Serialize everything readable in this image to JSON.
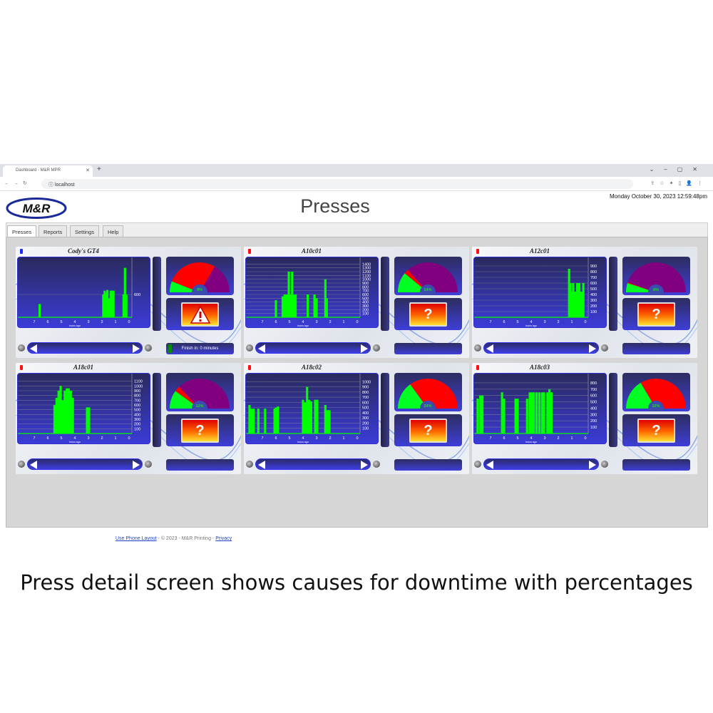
{
  "browser": {
    "tab_title": "Dashboard - M&R MPR",
    "url": "localhost"
  },
  "header": {
    "logo_text": "M&R",
    "title": "Presses",
    "datetime": "Monday October 30, 2023 12:59:48pm"
  },
  "tabs": [
    {
      "label": "Presses",
      "active": true
    },
    {
      "label": "Reports"
    },
    {
      "label": "Settings"
    },
    {
      "label": "Help"
    }
  ],
  "colors": {
    "bar": "#00ff00",
    "gauge_green": "#00ff22",
    "gauge_red": "#ff0000",
    "gauge_purple": "#800080",
    "status_running": "#1f2bff",
    "status_stopped": "#ff1010"
  },
  "chart_common": {
    "x_ticks": [
      7,
      6,
      5,
      4,
      3,
      2,
      1,
      0
    ],
    "x_label": "hours ago",
    "x_range": [
      8,
      0
    ]
  },
  "presses": [
    {
      "name": "Cody's GT4",
      "status": "status_running",
      "ymax": 1500,
      "yticks": [
        600
      ],
      "bars": [
        [
          6.6,
          350
        ],
        [
          1.9,
          600
        ],
        [
          1.8,
          700
        ],
        [
          1.7,
          650
        ],
        [
          1.6,
          720
        ],
        [
          1.5,
          500
        ],
        [
          1.35,
          700
        ],
        [
          1.25,
          700
        ],
        [
          1.15,
          700
        ],
        [
          0.4,
          600
        ],
        [
          0.3,
          1300
        ],
        [
          0.2,
          600
        ]
      ],
      "gauge": {
        "green": 0.12,
        "red": 0.55,
        "purple": 0.33,
        "percent": "9%"
      },
      "alert": "warning",
      "alert_icon": "warning-icon",
      "finish": "Finish in: 0 minutes"
    },
    {
      "name": "A10c01",
      "status": "status_stopped",
      "ymax": 1500,
      "yticks": [
        100,
        200,
        300,
        400,
        500,
        600,
        700,
        800,
        900,
        1000,
        1100,
        1200,
        1300,
        1400
      ],
      "bars": [
        [
          6.0,
          450
        ],
        [
          5.5,
          550
        ],
        [
          5.35,
          600
        ],
        [
          5.2,
          600
        ],
        [
          5.05,
          1200
        ],
        [
          4.95,
          600
        ],
        [
          4.8,
          1200
        ],
        [
          4.65,
          600
        ],
        [
          4.55,
          600
        ],
        [
          3.65,
          600
        ],
        [
          3.15,
          600
        ],
        [
          3.0,
          500
        ],
        [
          2.35,
          1000
        ],
        [
          2.25,
          500
        ]
      ],
      "gauge": {
        "green": 0.22,
        "red": 0.05,
        "purple": 0.73,
        "percent": "14%"
      },
      "alert": "?",
      "alert_icon": "question-icon",
      "finish": ""
    },
    {
      "name": "A12c01",
      "status": "status_stopped",
      "ymax": 1000,
      "yticks": [
        100,
        200,
        300,
        400,
        500,
        600,
        700,
        800,
        900
      ],
      "bars": [
        [
          1.2,
          850
        ],
        [
          1.1,
          600
        ],
        [
          1.0,
          450
        ],
        [
          0.9,
          600
        ],
        [
          0.75,
          450
        ],
        [
          0.6,
          600
        ],
        [
          0.45,
          600
        ],
        [
          0.3,
          450
        ],
        [
          0.15,
          600
        ]
      ],
      "gauge": {
        "green": 0.1,
        "red": 0.01,
        "purple": 0.89,
        "percent": "6%"
      },
      "alert": "?",
      "alert_icon": "question-icon",
      "finish": ""
    },
    {
      "name": "A18c01",
      "status": "status_stopped",
      "ymax": 1200,
      "yticks": [
        100,
        200,
        300,
        400,
        500,
        600,
        700,
        800,
        900,
        1000,
        1100
      ],
      "bars": [
        [
          5.5,
          600
        ],
        [
          5.35,
          750
        ],
        [
          5.2,
          900
        ],
        [
          5.05,
          1000
        ],
        [
          4.9,
          700
        ],
        [
          4.75,
          900
        ],
        [
          4.6,
          950
        ],
        [
          4.45,
          950
        ],
        [
          4.3,
          900
        ],
        [
          4.15,
          750
        ],
        [
          3.1,
          550
        ],
        [
          2.95,
          550
        ]
      ],
      "gauge": {
        "green": 0.2,
        "red": 0.06,
        "purple": 0.74,
        "percent": "12%"
      },
      "alert": "?",
      "alert_icon": "question-icon",
      "finish": ""
    },
    {
      "name": "A18c02",
      "status": "status_stopped",
      "ymax": 1100,
      "yticks": [
        100,
        200,
        300,
        400,
        500,
        600,
        700,
        800,
        900,
        1000
      ],
      "bars": [
        [
          7.95,
          550
        ],
        [
          7.8,
          480
        ],
        [
          7.65,
          480
        ],
        [
          7.3,
          480
        ],
        [
          6.8,
          480
        ],
        [
          6.1,
          480
        ],
        [
          6.0,
          500
        ],
        [
          5.85,
          520
        ],
        [
          4.0,
          650
        ],
        [
          3.85,
          600
        ],
        [
          3.7,
          900
        ],
        [
          3.55,
          650
        ],
        [
          3.4,
          620
        ],
        [
          3.1,
          650
        ],
        [
          2.95,
          650
        ],
        [
          2.35,
          550
        ],
        [
          2.2,
          450
        ],
        [
          2.05,
          450
        ]
      ],
      "gauge": {
        "green": 0.3,
        "red": 0.7,
        "purple": 0,
        "percent": "24%"
      },
      "alert": "?",
      "alert_icon": "question-icon",
      "finish": ""
    },
    {
      "name": "A18c03",
      "status": "status_stopped",
      "ymax": 900,
      "yticks": [
        100,
        200,
        300,
        400,
        500,
        600,
        700,
        800
      ],
      "bars": [
        [
          7.95,
          550
        ],
        [
          7.75,
          600
        ],
        [
          7.6,
          600
        ],
        [
          6.15,
          650
        ],
        [
          6.0,
          550
        ],
        [
          5.15,
          550
        ],
        [
          5.0,
          550
        ],
        [
          4.3,
          550
        ],
        [
          4.1,
          650
        ],
        [
          3.95,
          650
        ],
        [
          3.8,
          650
        ],
        [
          3.6,
          650
        ],
        [
          3.4,
          650
        ],
        [
          3.2,
          650
        ],
        [
          3.05,
          650
        ],
        [
          2.8,
          650
        ],
        [
          2.65,
          700
        ],
        [
          2.5,
          650
        ]
      ],
      "gauge": {
        "green": 0.33,
        "red": 0.67,
        "purple": 0,
        "percent": "32%"
      },
      "alert": "?",
      "alert_icon": "question-icon",
      "finish": ""
    }
  ],
  "footer": {
    "phone_link": "Use Phone Layout",
    "copyright": " - © 2023 - M&R Printing - ",
    "privacy_link": "Privacy"
  },
  "caption": "Press detail screen shows causes for downtime with percentages"
}
